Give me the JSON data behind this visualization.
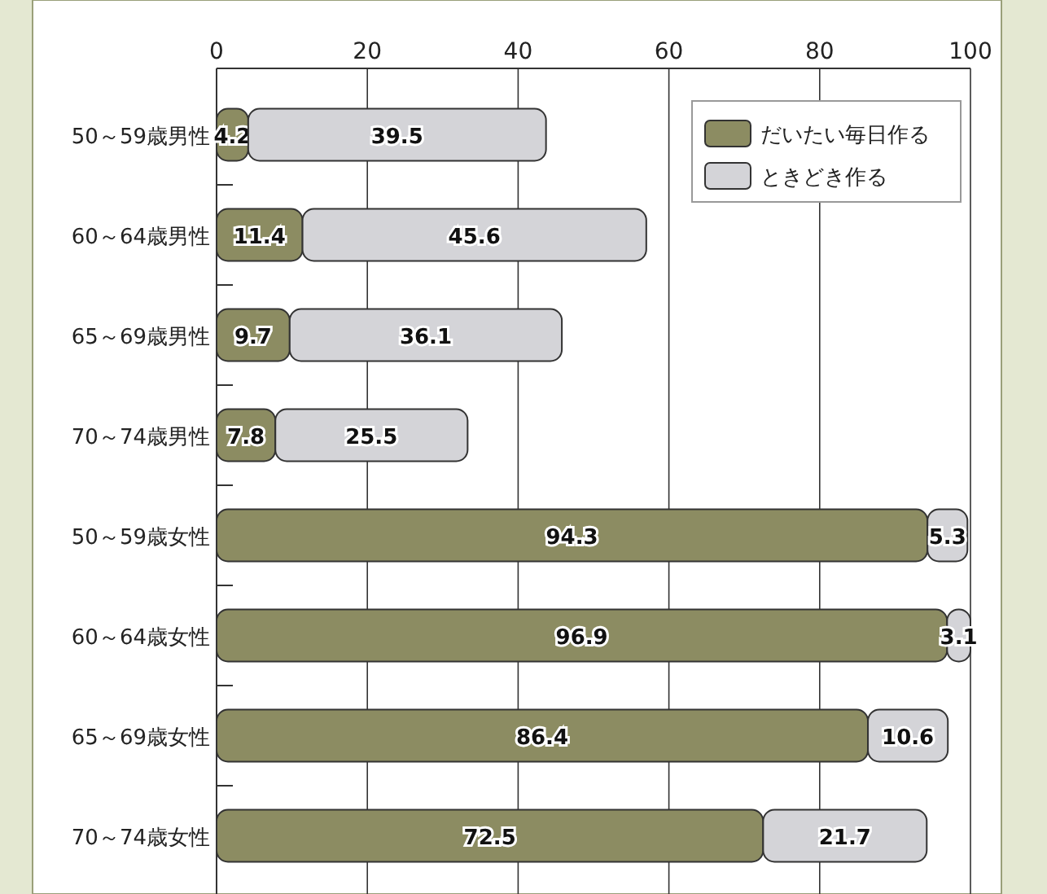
{
  "chart_data": {
    "type": "bar",
    "orientation": "horizontal",
    "stacked": true,
    "data_labels": true,
    "grid": "x",
    "legend": "top right",
    "categories": [
      "50～59歳男性",
      "60～64歳男性",
      "65～69歳男性",
      "70～74歳男性",
      "50～59歳女性",
      "60～64歳女性",
      "65～69歳女性",
      "70～74歳女性"
    ],
    "series": [
      {
        "name": "だいたい毎日作る",
        "color": "#8c8c62",
        "values": [
          4.2,
          11.4,
          9.7,
          7.8,
          94.3,
          96.9,
          86.4,
          72.5
        ]
      },
      {
        "name": "ときどき作る",
        "color": "#d4d4d8",
        "values": [
          39.5,
          45.6,
          36.1,
          25.5,
          5.3,
          3.1,
          10.6,
          21.7
        ]
      }
    ],
    "xlim": [
      0,
      100
    ],
    "xticks": [
      0,
      20,
      40,
      60,
      80,
      100
    ]
  }
}
